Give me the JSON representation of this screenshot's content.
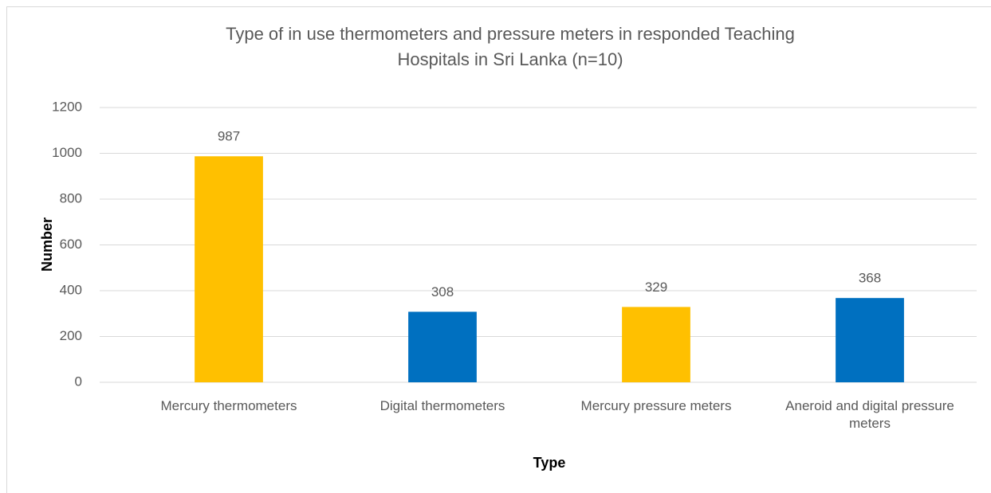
{
  "chart_data": {
    "type": "bar",
    "title": [
      "Type of in use thermometers and pressure meters in responded Teaching",
      "Hospitals in Sri Lanka (n=10)"
    ],
    "xlabel": "Type",
    "ylabel": "Number",
    "categories": [
      "Mercury thermometers",
      "Digital thermometers",
      "Mercury pressure meters",
      "Aneroid and digital pressure meters"
    ],
    "values": [
      987,
      308,
      329,
      368
    ],
    "colors": [
      "#ffc000",
      "#0070c0",
      "#ffc000",
      "#0070c0"
    ],
    "ylim": [
      0,
      1200
    ],
    "yticks": [
      0,
      200,
      400,
      600,
      800,
      1000,
      1200
    ],
    "grid": true
  }
}
